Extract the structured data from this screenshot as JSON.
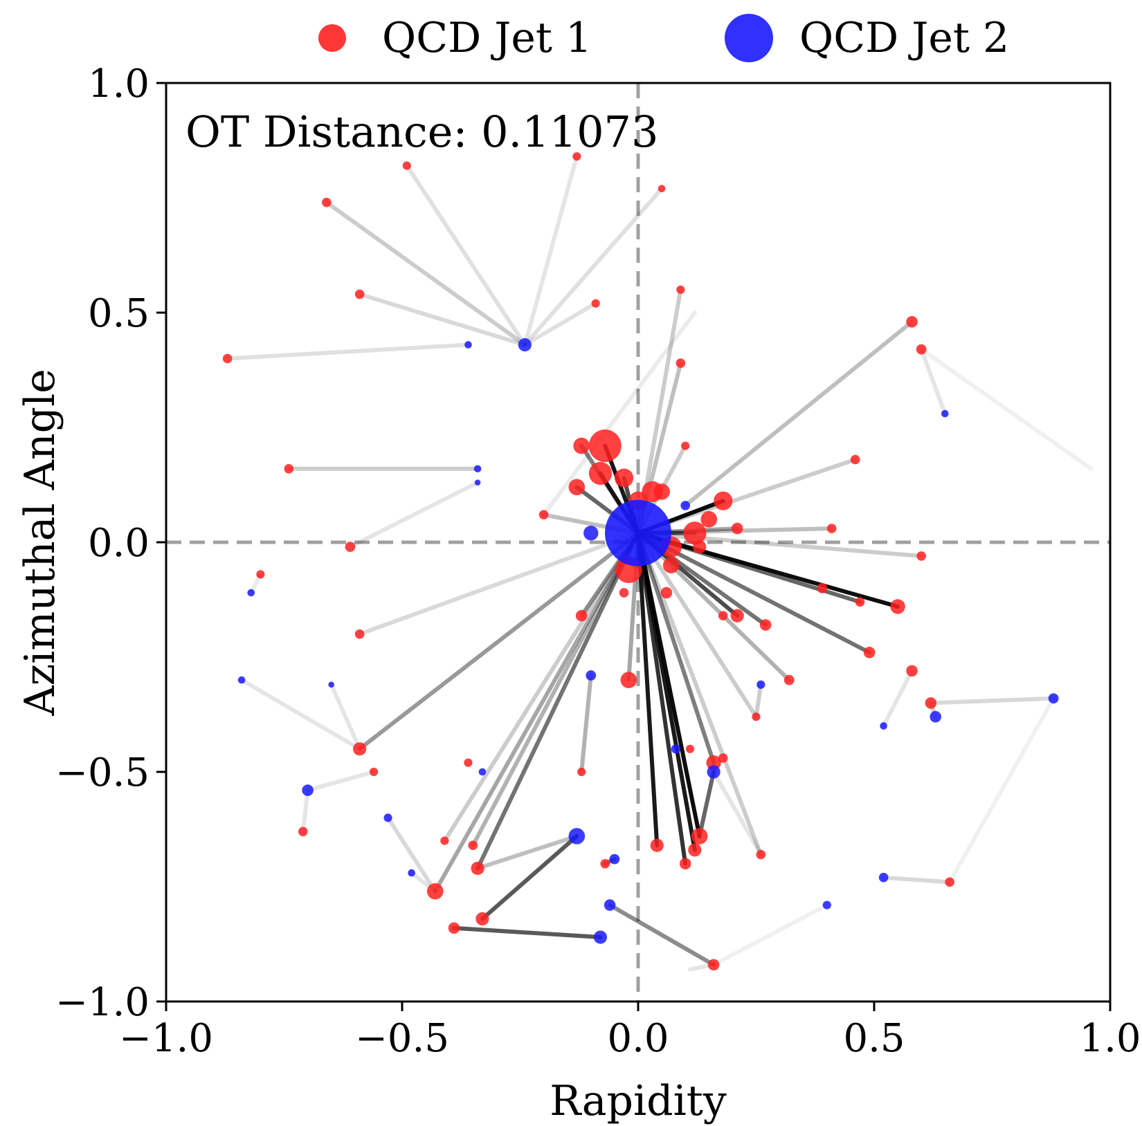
{
  "chart_data": {
    "type": "scatter",
    "xlabel": "Rapidity",
    "ylabel": "Azimuthal Angle",
    "xlim": [
      -1.0,
      1.0
    ],
    "ylim": [
      -1.0,
      1.0
    ],
    "xticks": [
      "−1.0",
      "−0.5",
      "0.0",
      "0.5",
      "1.0"
    ],
    "yticks": [
      "1.0",
      "0.5",
      "0.0",
      "−0.5",
      "−1.0"
    ],
    "xtick_values": [
      -1.0,
      -0.5,
      0.0,
      0.5,
      1.0
    ],
    "ytick_values": [
      1.0,
      0.5,
      0.0,
      -0.5,
      -1.0
    ],
    "annotation": "OT Distance: 0.11073",
    "legend_position": "top-center",
    "grid": false,
    "reference_lines": {
      "x": 0.0,
      "y": 0.0,
      "style": "dashed",
      "color": "#a0a0a0"
    },
    "series": [
      {
        "name": "QCD Jet 1",
        "color": "#ff2020",
        "points": [
          [
            -0.07,
            0.21,
            0.12
          ],
          [
            -0.12,
            0.21,
            0.03
          ],
          [
            -0.08,
            0.15,
            0.06
          ],
          [
            -0.03,
            0.14,
            0.04
          ],
          [
            -0.13,
            0.12,
            0.03
          ],
          [
            0.03,
            0.11,
            0.05
          ],
          [
            0.05,
            0.11,
            0.03
          ],
          [
            0.0,
            0.09,
            0.04
          ],
          [
            0.18,
            0.09,
            0.04
          ],
          [
            0.15,
            0.05,
            0.03
          ],
          [
            0.12,
            0.02,
            0.06
          ],
          [
            0.21,
            0.03,
            0.015
          ],
          [
            0.07,
            -0.01,
            0.05
          ],
          [
            0.13,
            -0.01,
            0.02
          ],
          [
            0.07,
            -0.05,
            0.03
          ],
          [
            -0.02,
            -0.06,
            0.08
          ],
          [
            0.55,
            -0.14,
            0.025
          ],
          [
            0.39,
            -0.1,
            0.012
          ],
          [
            0.47,
            -0.13,
            0.01
          ],
          [
            0.21,
            -0.16,
            0.02
          ],
          [
            0.27,
            -0.18,
            0.015
          ],
          [
            0.18,
            -0.16,
            0.01
          ],
          [
            0.49,
            -0.24,
            0.015
          ],
          [
            0.32,
            -0.3,
            0.012
          ],
          [
            -0.02,
            -0.3,
            0.03
          ],
          [
            -0.12,
            -0.16,
            0.015
          ],
          [
            0.06,
            -0.11,
            0.015
          ],
          [
            -0.03,
            -0.11,
            0.01
          ],
          [
            0.16,
            -0.48,
            0.025
          ],
          [
            0.18,
            -0.47,
            0.01
          ],
          [
            0.13,
            -0.64,
            0.03
          ],
          [
            0.12,
            -0.67,
            0.02
          ],
          [
            0.1,
            -0.7,
            0.015
          ],
          [
            0.04,
            -0.66,
            0.02
          ],
          [
            -0.59,
            -0.45,
            0.02
          ],
          [
            -0.43,
            -0.76,
            0.03
          ],
          [
            -0.34,
            -0.71,
            0.02
          ],
          [
            -0.33,
            -0.82,
            0.02
          ],
          [
            -0.39,
            -0.84,
            0.015
          ],
          [
            -0.07,
            -0.7,
            0.01
          ],
          [
            -0.12,
            -0.5,
            0.008
          ],
          [
            0.16,
            -0.92,
            0.015
          ],
          [
            -0.36,
            -0.48,
            0.008
          ],
          [
            0.58,
            -0.28,
            0.015
          ],
          [
            0.62,
            -0.35,
            0.015
          ],
          [
            0.66,
            -0.74,
            0.01
          ],
          [
            0.58,
            0.48,
            0.015
          ],
          [
            0.6,
            0.42,
            0.012
          ],
          [
            0.46,
            0.18,
            0.01
          ],
          [
            0.41,
            0.03,
            0.01
          ],
          [
            0.6,
            -0.03,
            0.01
          ],
          [
            -0.66,
            0.74,
            0.01
          ],
          [
            -0.59,
            0.54,
            0.01
          ],
          [
            -0.49,
            0.82,
            0.008
          ],
          [
            -0.13,
            0.84,
            0.008
          ],
          [
            0.05,
            0.77,
            0.006
          ],
          [
            0.09,
            0.55,
            0.008
          ],
          [
            0.09,
            0.39,
            0.01
          ],
          [
            -0.09,
            0.52,
            0.008
          ],
          [
            -0.87,
            0.4,
            0.01
          ],
          [
            -0.74,
            0.16,
            0.01
          ],
          [
            -0.61,
            -0.01,
            0.012
          ],
          [
            -0.59,
            -0.2,
            0.01
          ],
          [
            -0.8,
            -0.07,
            0.008
          ],
          [
            -0.71,
            -0.63,
            0.01
          ],
          [
            -0.56,
            -0.5,
            0.008
          ],
          [
            -0.41,
            -0.65,
            0.008
          ],
          [
            0.1,
            0.21,
            0.008
          ],
          [
            -0.2,
            0.06,
            0.01
          ],
          [
            0.25,
            -0.38,
            0.008
          ],
          [
            0.11,
            -0.45,
            0.008
          ],
          [
            0.26,
            -0.68,
            0.01
          ],
          [
            -0.35,
            -0.66,
            0.01
          ]
        ]
      },
      {
        "name": "QCD Jet 2",
        "color": "#1a1aff",
        "points": [
          [
            0.0,
            0.02,
            0.5
          ],
          [
            -0.1,
            0.02,
            0.025
          ],
          [
            -0.24,
            0.43,
            0.02
          ],
          [
            -0.36,
            0.43,
            0.006
          ],
          [
            -0.34,
            0.16,
            0.006
          ],
          [
            -0.34,
            0.13,
            0.004
          ],
          [
            0.1,
            0.08,
            0.01
          ],
          [
            -0.1,
            -0.29,
            0.012
          ],
          [
            0.16,
            -0.5,
            0.02
          ],
          [
            0.08,
            -0.45,
            0.01
          ],
          [
            -0.13,
            -0.64,
            0.03
          ],
          [
            -0.05,
            -0.69,
            0.012
          ],
          [
            -0.06,
            -0.79,
            0.015
          ],
          [
            -0.08,
            -0.86,
            0.02
          ],
          [
            0.4,
            -0.79,
            0.008
          ],
          [
            0.52,
            -0.73,
            0.01
          ],
          [
            0.63,
            -0.38,
            0.015
          ],
          [
            0.88,
            -0.34,
            0.012
          ],
          [
            0.52,
            -0.4,
            0.006
          ],
          [
            0.65,
            0.28,
            0.006
          ],
          [
            0.26,
            -0.31,
            0.008
          ],
          [
            -0.82,
            -0.11,
            0.006
          ],
          [
            -0.84,
            -0.3,
            0.006
          ],
          [
            -0.65,
            -0.31,
            0.004
          ],
          [
            -0.7,
            -0.54,
            0.015
          ],
          [
            -0.53,
            -0.6,
            0.008
          ],
          [
            -0.48,
            -0.72,
            0.006
          ],
          [
            -0.33,
            -0.5,
            0.006
          ]
        ]
      }
    ],
    "transport_lines": [
      [
        -0.07,
        0.21,
        0.0,
        0.02,
        0.9
      ],
      [
        -0.12,
        0.21,
        0.0,
        0.02,
        0.5
      ],
      [
        -0.08,
        0.15,
        0.0,
        0.02,
        0.85
      ],
      [
        -0.03,
        0.14,
        0.0,
        0.02,
        0.7
      ],
      [
        -0.13,
        0.12,
        0.0,
        0.02,
        0.6
      ],
      [
        0.18,
        0.09,
        0.0,
        0.02,
        0.95
      ],
      [
        0.12,
        0.02,
        0.0,
        0.02,
        0.6
      ],
      [
        0.21,
        0.03,
        0.0,
        0.02,
        0.35
      ],
      [
        0.55,
        -0.14,
        0.0,
        0.02,
        0.95
      ],
      [
        0.47,
        -0.13,
        0.0,
        0.02,
        0.6
      ],
      [
        0.49,
        -0.24,
        0.0,
        0.02,
        0.55
      ],
      [
        0.21,
        -0.16,
        0.0,
        0.02,
        0.7
      ],
      [
        0.27,
        -0.18,
        0.0,
        0.02,
        0.55
      ],
      [
        0.32,
        -0.3,
        0.0,
        0.02,
        0.3
      ],
      [
        0.13,
        -0.64,
        0.0,
        0.02,
        0.95
      ],
      [
        0.12,
        -0.67,
        0.0,
        0.02,
        0.9
      ],
      [
        0.1,
        -0.7,
        0.0,
        0.02,
        0.8
      ],
      [
        0.04,
        -0.66,
        0.0,
        0.02,
        0.9
      ],
      [
        0.16,
        -0.48,
        0.0,
        0.02,
        0.5
      ],
      [
        -0.34,
        -0.71,
        0.0,
        0.02,
        0.55
      ],
      [
        -0.43,
        -0.76,
        0.0,
        0.02,
        0.35
      ],
      [
        -0.59,
        -0.45,
        0.0,
        0.02,
        0.4
      ],
      [
        -0.12,
        -0.16,
        0.0,
        0.02,
        0.45
      ],
      [
        -0.02,
        -0.3,
        0.0,
        0.02,
        0.35
      ],
      [
        0.41,
        0.03,
        0.0,
        0.02,
        0.25
      ],
      [
        0.6,
        -0.03,
        0.0,
        0.02,
        0.2
      ],
      [
        0.58,
        0.48,
        0.1,
        0.08,
        0.25
      ],
      [
        0.46,
        0.18,
        0.0,
        0.02,
        0.2
      ],
      [
        0.09,
        0.39,
        0.0,
        0.02,
        0.25
      ],
      [
        0.09,
        0.55,
        0.0,
        0.02,
        0.2
      ],
      [
        0.1,
        0.21,
        0.0,
        0.02,
        0.2
      ],
      [
        -0.2,
        0.06,
        0.0,
        0.02,
        0.25
      ],
      [
        -0.59,
        -0.2,
        0.0,
        0.02,
        0.15
      ],
      [
        -0.35,
        -0.66,
        0.0,
        0.02,
        0.3
      ],
      [
        -0.41,
        -0.65,
        0.0,
        0.02,
        0.2
      ],
      [
        0.25,
        -0.38,
        0.0,
        0.02,
        0.2
      ],
      [
        0.26,
        -0.68,
        0.0,
        0.02,
        0.2
      ],
      [
        -0.33,
        -0.82,
        -0.13,
        -0.64,
        0.65
      ],
      [
        -0.39,
        -0.84,
        -0.08,
        -0.86,
        0.65
      ],
      [
        -0.34,
        -0.71,
        -0.13,
        -0.64,
        0.25
      ],
      [
        0.16,
        -0.92,
        -0.06,
        -0.79,
        0.45
      ],
      [
        -0.07,
        -0.7,
        -0.05,
        -0.69,
        0.5
      ],
      [
        0.13,
        -0.64,
        0.16,
        -0.5,
        0.6
      ],
      [
        -0.12,
        -0.5,
        -0.1,
        -0.29,
        0.3
      ],
      [
        -0.66,
        0.74,
        -0.24,
        0.43,
        0.2
      ],
      [
        -0.59,
        0.54,
        -0.24,
        0.43,
        0.15
      ],
      [
        -0.49,
        0.82,
        -0.24,
        0.43,
        0.12
      ],
      [
        -0.13,
        0.84,
        -0.24,
        0.43,
        0.1
      ],
      [
        0.05,
        0.77,
        -0.24,
        0.43,
        0.12
      ],
      [
        -0.09,
        0.52,
        -0.24,
        0.43,
        0.12
      ],
      [
        -0.87,
        0.4,
        -0.36,
        0.43,
        0.12
      ],
      [
        -0.74,
        0.16,
        -0.34,
        0.16,
        0.2
      ],
      [
        -0.61,
        -0.01,
        -0.34,
        0.13,
        0.1
      ],
      [
        -0.8,
        -0.07,
        -0.82,
        -0.11,
        0.08
      ],
      [
        -0.59,
        -0.45,
        -0.65,
        -0.31,
        0.1
      ],
      [
        -0.59,
        -0.45,
        -0.84,
        -0.3,
        0.1
      ],
      [
        -0.56,
        -0.5,
        -0.7,
        -0.54,
        0.1
      ],
      [
        -0.71,
        -0.63,
        -0.7,
        -0.54,
        0.1
      ],
      [
        -0.43,
        -0.76,
        -0.53,
        -0.6,
        0.15
      ],
      [
        -0.43,
        -0.76,
        -0.48,
        -0.72,
        0.1
      ],
      [
        0.62,
        -0.35,
        0.88,
        -0.34,
        0.15
      ],
      [
        0.62,
        -0.35,
        0.63,
        -0.38,
        0.2
      ],
      [
        0.58,
        -0.28,
        0.52,
        -0.4,
        0.1
      ],
      [
        0.66,
        -0.74,
        0.52,
        -0.73,
        0.15
      ],
      [
        0.66,
        -0.74,
        0.88,
        -0.34,
        0.06
      ],
      [
        0.6,
        0.42,
        0.65,
        0.28,
        0.1
      ],
      [
        0.6,
        0.42,
        0.96,
        0.16,
        0.06
      ],
      [
        0.16,
        -0.92,
        0.4,
        -0.79,
        0.06
      ],
      [
        0.16,
        -0.92,
        0.11,
        -0.93,
        0.1
      ],
      [
        0.25,
        -0.38,
        0.26,
        -0.31,
        0.2
      ],
      [
        0.26,
        -0.68,
        0.16,
        -0.5,
        0.1
      ],
      [
        -0.2,
        0.06,
        0.12,
        0.5,
        0.08
      ]
    ]
  }
}
